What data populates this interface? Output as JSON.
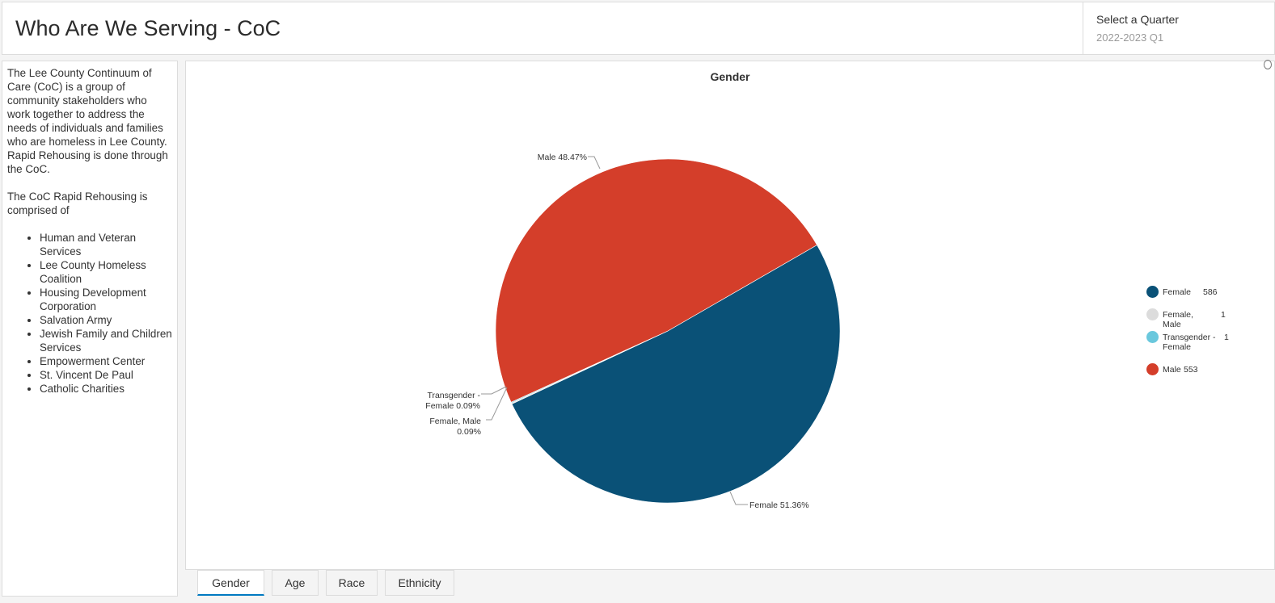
{
  "header": {
    "title": "Who Are We Serving - CoC",
    "quarter_label": "Select a Quarter",
    "quarter_value": "2022-2023 Q1"
  },
  "intro": {
    "paragraph1": "The Lee County Continuum of Care (CoC) is a group of community stakeholders who work together to address the needs of individuals and families who are homeless in Lee County. Rapid Rehousing is done through the CoC.",
    "paragraph2": "The CoC Rapid Rehousing is comprised of",
    "members": [
      "Human and Veteran Services",
      "Lee County Homeless Coalition",
      "Housing Development Corporation",
      "Salvation Army",
      "Jewish Family and Children Services",
      "Empowerment Center",
      "St. Vincent De Paul",
      "Catholic Charities"
    ]
  },
  "chart": {
    "title": "Gender",
    "slice_labels": {
      "male": "Male 48.47%",
      "female": "Female 51.36%",
      "transgender_line1": "Transgender -",
      "transgender_line2": "Female 0.09%",
      "female_male_line1": "Female, Male",
      "female_male_line2": "0.09%"
    },
    "legend": [
      {
        "name": "Female",
        "value": "586",
        "color": "#0a5177"
      },
      {
        "name": "Female, Male",
        "value": "1",
        "color": "#dcdcdc"
      },
      {
        "name": "Transgender - Female",
        "value": "1",
        "color": "#6ac8dd"
      },
      {
        "name": "Male",
        "value": "553",
        "color": "#d43e2a"
      }
    ]
  },
  "chart_data": {
    "type": "pie",
    "title": "Gender",
    "categories": [
      "Female",
      "Female, Male",
      "Transgender - Female",
      "Male"
    ],
    "values": [
      586,
      1,
      1,
      553
    ],
    "percentages": [
      51.36,
      0.09,
      0.09,
      48.47
    ],
    "colors": [
      "#0a5177",
      "#dcdcdc",
      "#6ac8dd",
      "#d43e2a"
    ],
    "legend_position": "right"
  },
  "tabs": [
    "Gender",
    "Age",
    "Race",
    "Ethnicity"
  ],
  "active_tab": "Gender"
}
